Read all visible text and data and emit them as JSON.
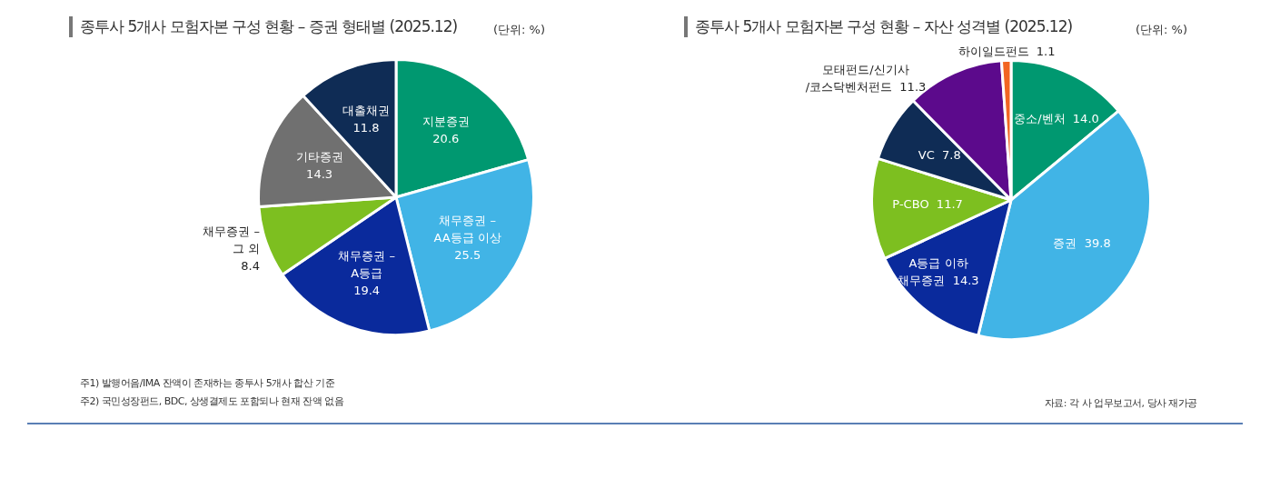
{
  "chart_data": [
    {
      "type": "pie",
      "title": "종투사 5개사 모험자본 구성 현황 – 증권 형태별 (2025.12)",
      "subtitle": "(단위: %)",
      "categories": [
        "지분증권",
        "채무증권 –\nAA등급 이상",
        "채무증권 –\nA등급",
        "채무증권 –\n그 외",
        "기타증권",
        "대출채권"
      ],
      "values": [
        20.6,
        25.5,
        19.4,
        8.4,
        14.3,
        11.8
      ],
      "value_labels": [
        "20.6",
        "25.5",
        "19.4",
        "8.4",
        "14.3",
        "11.8"
      ],
      "colors": [
        "#009870",
        "#41b4e6",
        "#0a2a9c",
        "#7dbf20",
        "#707070",
        "#0f2c55"
      ],
      "legend": false,
      "annotations": [
        "주1) 발행어음/IMA 잔액이 존재하는 종투사 5개사 합산 기준",
        "주2) 국민성장펀드, BDC, 상생결제도 포함되나 현재 잔액 없음"
      ]
    },
    {
      "type": "pie",
      "title": "종투사 5개사 모험자본 구성 현황 – 자산 성격별 (2025.12)",
      "subtitle": "(단위: %)",
      "categories": [
        "중소/벤처",
        "증권",
        "A등급 이하\n채무증권",
        "P-CBO",
        "VC",
        "모태펀드/신기사\n/코스닥벤처펀드",
        "하이일드펀드"
      ],
      "values": [
        14.0,
        39.8,
        14.3,
        11.7,
        7.8,
        11.3,
        1.1
      ],
      "value_labels": [
        "14.0",
        "39.8",
        "14.3",
        "11.7",
        "7.8",
        "11.3",
        "1.1"
      ],
      "colors": [
        "#009870",
        "#41b4e6",
        "#0a2a9c",
        "#7dbf20",
        "#0f2c55",
        "#5c0a8c",
        "#f26522"
      ],
      "legend": false,
      "annotations": [
        "자료: 각 사 업무보고서, 당사 재가공"
      ]
    }
  ]
}
